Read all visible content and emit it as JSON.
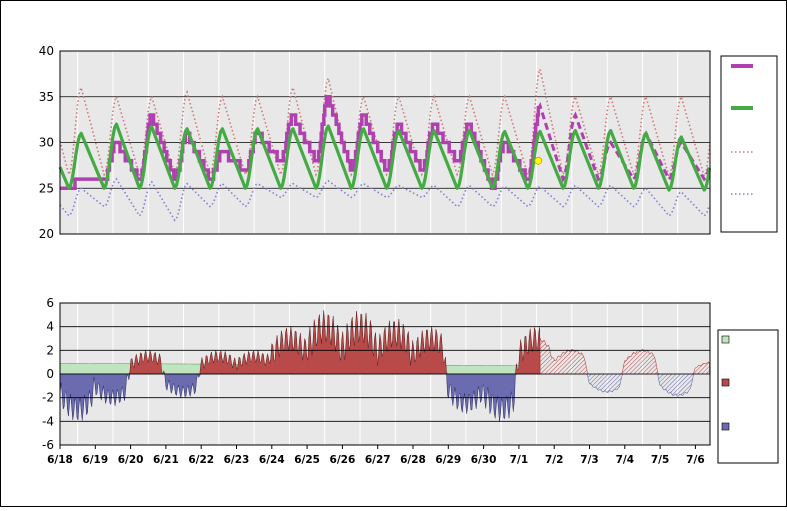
{
  "colors": {
    "plot_bg": "#e8e8e8",
    "grid_major": "#000000",
    "grid_minor": "#ffffff",
    "observed": "#b040b0",
    "normal": "#44aa44",
    "record_high": "#d07878",
    "record_low": "#8080d0",
    "marker": "#ffff00",
    "area_green": "#bfe4bf",
    "area_red": "#b84a4a",
    "area_blue": "#6b6bb0",
    "area_hatch": "#b84a4a"
  },
  "chart_data": [
    {
      "type": "line",
      "ylim": [
        20,
        40
      ],
      "yticks": [
        "20",
        "25",
        "30",
        "35",
        "40"
      ],
      "x_dates": [
        "6/18",
        "6/19",
        "6/20",
        "6/21",
        "6/22",
        "6/23",
        "6/24",
        "6/25",
        "6/26",
        "6/27",
        "6/28",
        "6/29",
        "6/30",
        "7/1",
        "7/2",
        "7/3",
        "7/4",
        "7/5",
        "7/6"
      ],
      "series_style": {
        "observed": "thick stepped purple line, daily highs and lows (solid until 7/1, then dashed forecast)",
        "normal": "thick green line",
        "record_high": "dotted pink line",
        "record_low": "dotted blue line"
      },
      "daily": {
        "observed_max": [
          26,
          30,
          33,
          31,
          29,
          31,
          33,
          35,
          33,
          32,
          32,
          32,
          30,
          34,
          33,
          30,
          31,
          30,
          30
        ],
        "observed_min": [
          25,
          26,
          26,
          26,
          26,
          27,
          28,
          28,
          27,
          27,
          27,
          28,
          25,
          26,
          26,
          26,
          26,
          26,
          26
        ],
        "normal_max": [
          31,
          32,
          31.7,
          31.5,
          31.5,
          31.5,
          31.5,
          31.8,
          31.5,
          31.3,
          31.3,
          31.3,
          31.2,
          31.2,
          31.3,
          31.3,
          31,
          30.6,
          31
        ],
        "normal_min": [
          25,
          25,
          25,
          25,
          25,
          25,
          25,
          25,
          25,
          25,
          25,
          25,
          25,
          25,
          25,
          25,
          25,
          24.8,
          24.8
        ],
        "record_high": [
          36,
          35,
          35,
          35.5,
          35,
          35,
          36,
          37,
          35,
          35,
          35,
          35,
          35,
          38,
          35,
          35,
          35,
          35,
          35
        ],
        "record_low": [
          22,
          23,
          22,
          21.5,
          23,
          23,
          24,
          24,
          24,
          24,
          24,
          23,
          23,
          23,
          23,
          23,
          23,
          22,
          22
        ]
      },
      "current_marker": {
        "x": "7/1 (late)",
        "y": 28
      }
    },
    {
      "type": "area",
      "ylim": [
        -6,
        6
      ],
      "yticks": [
        "-6",
        "-4",
        "-2",
        "0",
        "2",
        "4",
        "6"
      ],
      "x_dates": [
        "6/18",
        "6/19",
        "6/20",
        "6/21",
        "6/22",
        "6/23",
        "6/24",
        "6/25",
        "6/26",
        "6/27",
        "6/28",
        "6/29",
        "6/30",
        "7/1",
        "7/2",
        "7/3",
        "7/4",
        "7/5",
        "7/6"
      ],
      "series_style": {
        "normal_spread": "light green area (positive)",
        "above_normal": "dark red area",
        "below_normal": "blue area",
        "forecast": "red/blue hatched area after 7/1"
      },
      "daily_departure_peak": [
        -3,
        -2,
        1.5,
        -1.5,
        1.5,
        1.5,
        3,
        4,
        4,
        3.5,
        3,
        -2.5,
        -3,
        3,
        2,
        -1.5,
        2,
        -1.8,
        1
      ]
    }
  ]
}
